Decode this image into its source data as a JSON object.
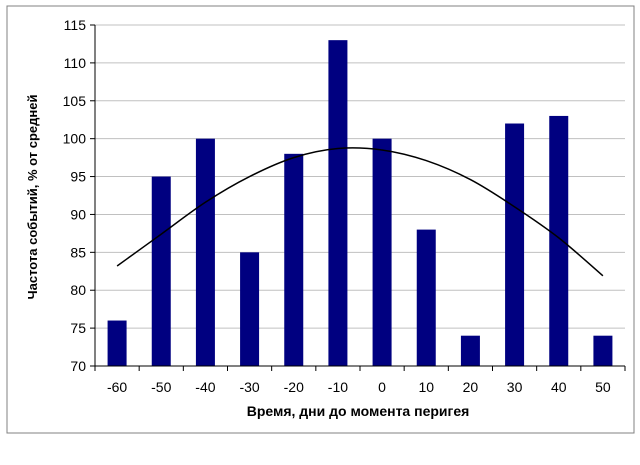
{
  "chart_data": {
    "type": "bar",
    "x": [
      -60,
      -50,
      -40,
      -30,
      -20,
      -10,
      0,
      10,
      20,
      30,
      40,
      50
    ],
    "categories": [
      "-60",
      "-50",
      "-40",
      "-30",
      "-20",
      "-10",
      "0",
      "10",
      "20",
      "30",
      "40",
      "50"
    ],
    "values": [
      76,
      95,
      100,
      85,
      98,
      113,
      100,
      88,
      74,
      102,
      103,
      74
    ],
    "trend": {
      "type": "polynomial",
      "x_range": [
        -60,
        50
      ],
      "points": [
        [
          -60,
          83.2
        ],
        [
          -50,
          87.4
        ],
        [
          -40,
          91.6
        ],
        [
          -30,
          95.0
        ],
        [
          -20,
          97.5
        ],
        [
          -10,
          98.7
        ],
        [
          0,
          98.5
        ],
        [
          10,
          97.1
        ],
        [
          20,
          94.6
        ],
        [
          30,
          91.0
        ],
        [
          40,
          86.9
        ],
        [
          50,
          81.9
        ]
      ]
    },
    "title": "",
    "xlabel": "Время, дни до момента перигея",
    "ylabel": "Частота событий, % от средней",
    "ylim": [
      70,
      115
    ],
    "yticks": [
      70,
      75,
      80,
      85,
      90,
      95,
      100,
      105,
      110,
      115
    ],
    "grid": "horizontal",
    "legend": "none",
    "colors": {
      "bar": "#000080",
      "trend": "#000000",
      "grid": "#c0c0c0"
    }
  }
}
